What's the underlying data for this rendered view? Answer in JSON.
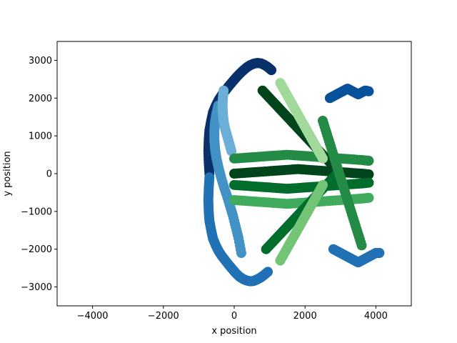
{
  "chart_data": {
    "type": "scatter",
    "title": "",
    "xlabel": "x position",
    "ylabel": "y position",
    "xlim": [
      -5000,
      5000
    ],
    "ylim": [
      -3500,
      3500
    ],
    "xticks": [
      -4000,
      -2000,
      0,
      2000,
      4000
    ],
    "yticks": [
      -3000,
      -2000,
      -1000,
      0,
      1000,
      2000,
      3000
    ],
    "xtick_labels": [
      "−4000",
      "−2000",
      "0",
      "2000",
      "4000"
    ],
    "ytick_labels": [
      "−3000",
      "−2000",
      "−1000",
      "0",
      "1000",
      "2000",
      "3000"
    ],
    "grid": false,
    "legend": "none",
    "series": [
      {
        "color": "#08306b",
        "x": [
          -700,
          -720,
          -730,
          -720,
          -700,
          -650,
          -600,
          -520,
          -440,
          -350,
          -250,
          -150,
          -50,
          50,
          150,
          250,
          350,
          450,
          550,
          650,
          750,
          850,
          950,
          1050
        ],
        "y": [
          0,
          300,
          600,
          900,
          1150,
          1400,
          1620,
          1800,
          1950,
          2080,
          2200,
          2320,
          2430,
          2540,
          2640,
          2730,
          2810,
          2870,
          2910,
          2930,
          2920,
          2880,
          2820,
          2740
        ]
      },
      {
        "color": "#2171b5",
        "x": [
          -700,
          -720,
          -730,
          -720,
          -700,
          -650,
          -600,
          -520,
          -440,
          -350,
          -250,
          -150,
          -50,
          50,
          150,
          250,
          350,
          450,
          550,
          650,
          750,
          850,
          950
        ],
        "y": [
          -100,
          -400,
          -700,
          -1000,
          -1250,
          -1500,
          -1720,
          -1900,
          -2050,
          -2180,
          -2300,
          -2420,
          -2530,
          -2640,
          -2730,
          -2790,
          -2830,
          -2850,
          -2840,
          -2800,
          -2750,
          -2680,
          -2600
        ]
      },
      {
        "color": "#4292c6",
        "x": [
          -450,
          -500,
          -540,
          -560,
          -560,
          -540,
          -500,
          -440,
          -370,
          -290,
          -200,
          -120,
          -40,
          40,
          120,
          200
        ],
        "y": [
          1800,
          1600,
          1380,
          1150,
          900,
          650,
          400,
          150,
          -100,
          -350,
          -600,
          -850,
          -1100,
          -1400,
          -1700,
          -2100
        ]
      },
      {
        "color": "#6baed6",
        "x": [
          -300,
          -320,
          -330,
          -320,
          -300,
          -260,
          -200,
          -140,
          -80
        ],
        "y": [
          2200,
          2000,
          1800,
          1600,
          1400,
          1200,
          1000,
          800,
          600
        ]
      },
      {
        "color": "#08519c",
        "x": [
          2700,
          2800,
          2900,
          3000,
          3100,
          3200,
          3300,
          3400,
          3500,
          3600,
          3700,
          3800
        ],
        "y": [
          2000,
          2050,
          2100,
          2150,
          2200,
          2250,
          2200,
          2150,
          2100,
          2150,
          2200,
          2180
        ]
      },
      {
        "color": "#2171b5",
        "x": [
          2800,
          2900,
          3000,
          3100,
          3200,
          3300,
          3400,
          3500,
          3600,
          3700,
          3800,
          3900,
          4000,
          4100
        ],
        "y": [
          -2000,
          -2050,
          -2100,
          -2150,
          -2200,
          -2250,
          -2300,
          -2350,
          -2300,
          -2250,
          -2200,
          -2150,
          -2100,
          -2100
        ]
      },
      {
        "color": "#00441b",
        "x": [
          0,
          300,
          600,
          900,
          1200,
          1500,
          1800,
          2100,
          2400,
          2700,
          3000,
          3300,
          3600,
          3800
        ],
        "y": [
          0,
          20,
          40,
          60,
          80,
          100,
          120,
          100,
          80,
          60,
          40,
          20,
          0,
          -20
        ]
      },
      {
        "color": "#006d2c",
        "x": [
          0,
          300,
          600,
          900,
          1200,
          1500,
          1800,
          2100,
          2400,
          2700,
          3000,
          3300,
          3600,
          3800
        ],
        "y": [
          -300,
          -320,
          -340,
          -360,
          -380,
          -400,
          -380,
          -360,
          -340,
          -320,
          -300,
          -280,
          -260,
          -240
        ]
      },
      {
        "color": "#238b45",
        "x": [
          0,
          300,
          600,
          900,
          1200,
          1500,
          1800,
          2100,
          2400,
          2700,
          3000,
          3300,
          3600,
          3800
        ],
        "y": [
          400,
          420,
          440,
          460,
          480,
          500,
          480,
          460,
          440,
          420,
          400,
          380,
          360,
          340
        ]
      },
      {
        "color": "#41ab5d",
        "x": [
          0,
          300,
          600,
          900,
          1200,
          1500,
          1800,
          2100,
          2400,
          2700,
          3000,
          3300,
          3600,
          3800
        ],
        "y": [
          -700,
          -720,
          -740,
          -760,
          -780,
          -800,
          -780,
          -760,
          -740,
          -720,
          -700,
          -680,
          -660,
          -640
        ]
      },
      {
        "color": "#00441b",
        "x": [
          800,
          1000,
          1200,
          1400,
          1600,
          1800,
          2000,
          2200,
          2400,
          2600,
          2800,
          3000
        ],
        "y": [
          2200,
          2000,
          1800,
          1600,
          1400,
          1200,
          1000,
          800,
          600,
          400,
          200,
          0
        ]
      },
      {
        "color": "#006d2c",
        "x": [
          900,
          1100,
          1300,
          1500,
          1700,
          1900,
          2100,
          2300,
          2500,
          2700,
          2900
        ],
        "y": [
          -2000,
          -1800,
          -1600,
          -1400,
          -1200,
          -1000,
          -800,
          -600,
          -400,
          -200,
          0
        ]
      },
      {
        "color": "#238b45",
        "x": [
          2500,
          2600,
          2700,
          2800,
          2900,
          3000,
          3100,
          3200,
          3300,
          3400,
          3500,
          3600
        ],
        "y": [
          1400,
          1100,
          800,
          500,
          200,
          -100,
          -400,
          -700,
          -1000,
          -1300,
          -1600,
          -1900
        ]
      },
      {
        "color": "#74c476",
        "x": [
          1300,
          1450,
          1600,
          1750,
          1900,
          2050,
          2200,
          2350,
          2500
        ],
        "y": [
          -2300,
          -2050,
          -1800,
          -1550,
          -1300,
          -1050,
          -800,
          -550,
          -300
        ]
      },
      {
        "color": "#a1d99b",
        "x": [
          1300,
          1450,
          1600,
          1750,
          1900,
          2050,
          2200,
          2350,
          2500
        ],
        "y": [
          2400,
          2150,
          1900,
          1650,
          1400,
          1150,
          900,
          650,
          400
        ]
      }
    ]
  }
}
